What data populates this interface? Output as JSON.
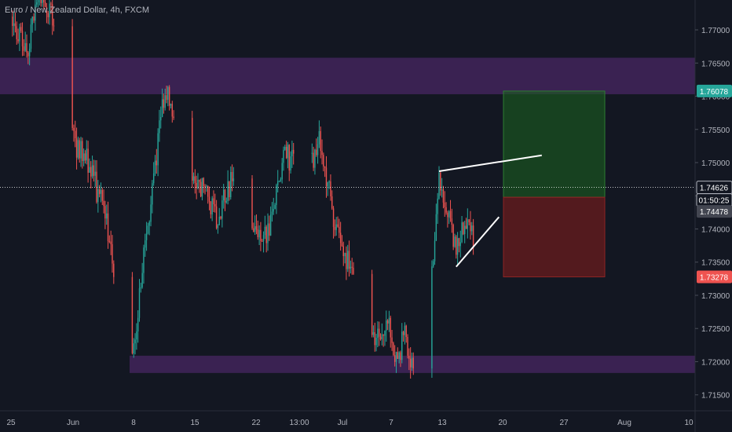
{
  "header": {
    "title": "Euro / New Zealand Dollar, 4h, FXCM"
  },
  "colors": {
    "background": "#131722",
    "up": "#26a69a",
    "down": "#ef5350",
    "zone": "#5b2c7a",
    "target_zone": "#1b5e20",
    "stop_zone": "#7f1d1d",
    "axis_text": "#b2b5be",
    "trendline": "#ffffff",
    "current_price_line": "#ffffff"
  },
  "chart_data": {
    "type": "candlestick",
    "title": "Euro / New Zealand Dollar, 4h, FXCM",
    "ylim": [
      1.7126,
      1.7745
    ],
    "x_ticks": [
      "25",
      "Jun",
      "8",
      "15",
      "22",
      "13:00",
      "Jul",
      "7",
      "13",
      "20",
      "27",
      "Aug",
      "10"
    ],
    "y_ticks": [
      "1.77000",
      "1.76500",
      "1.76000",
      "1.75500",
      "1.75000",
      "1.74500",
      "1.74000",
      "1.73500",
      "1.73000",
      "1.72500",
      "1.72000",
      "1.71500"
    ],
    "price_tags": {
      "target": "1.76078",
      "current": "1.74626",
      "countdown": "01:50:25",
      "entry": "1.74478",
      "stop": "1.73278"
    },
    "price_levels": {
      "target": 1.76078,
      "current": 1.74626,
      "entry": 1.74478,
      "stop": 1.73278
    },
    "zones": [
      {
        "name": "resistance",
        "low": 1.7603,
        "high": 1.7658
      },
      {
        "name": "support",
        "low": 1.7183,
        "high": 1.7209
      }
    ],
    "trendlines": [
      {
        "name": "upper",
        "from": [
          "Jul 14",
          1.7487
        ],
        "to": [
          "Jul 26",
          1.7511
        ]
      },
      {
        "name": "lower",
        "from": [
          "Jul 16",
          1.7343
        ],
        "to": [
          "Jul 21",
          1.7418
        ]
      }
    ],
    "anchors": [
      {
        "date": "May 24",
        "close": 1.772
      },
      {
        "date": "May 26",
        "close": 1.77
      },
      {
        "date": "May 27",
        "close": 1.766
      },
      {
        "date": "May 28",
        "close": 1.775
      },
      {
        "date": "May 30",
        "close": 1.772
      },
      {
        "date": "Jun 1",
        "close": 1.754
      },
      {
        "date": "Jun 3",
        "close": 1.75
      },
      {
        "date": "Jun 5",
        "close": 1.742
      },
      {
        "date": "Jun 7",
        "close": 1.727
      },
      {
        "date": "Jun 8",
        "close": 1.719
      },
      {
        "date": "Jun 10",
        "close": 1.741
      },
      {
        "date": "Jun 12",
        "close": 1.762
      },
      {
        "date": "Jun 14",
        "close": 1.75
      },
      {
        "date": "Jun 16",
        "close": 1.747
      },
      {
        "date": "Jun 18",
        "close": 1.742
      },
      {
        "date": "Jun 20",
        "close": 1.748
      },
      {
        "date": "Jun 22",
        "close": 1.74
      },
      {
        "date": "Jun 24",
        "close": 1.739
      },
      {
        "date": "Jun 26",
        "close": 1.752
      },
      {
        "date": "Jun 28",
        "close": 1.747
      },
      {
        "date": "Jun 30",
        "close": 1.753
      },
      {
        "date": "Jul 2",
        "close": 1.74
      },
      {
        "date": "Jul 4",
        "close": 1.733
      },
      {
        "date": "Jul 6",
        "close": 1.722
      },
      {
        "date": "Jul 8",
        "close": 1.726
      },
      {
        "date": "Jul 9",
        "close": 1.72
      },
      {
        "date": "Jul 10",
        "close": 1.724
      },
      {
        "date": "Jul 11",
        "close": 1.718
      },
      {
        "date": "Jul 12",
        "close": 1.722
      },
      {
        "date": "Jul 13",
        "close": 1.73
      },
      {
        "date": "Jul 14",
        "close": 1.747
      },
      {
        "date": "Jul 15",
        "close": 1.742
      },
      {
        "date": "Jul 16",
        "close": 1.736
      },
      {
        "date": "Jul 17",
        "close": 1.742
      },
      {
        "date": "Jul 18",
        "close": 1.739
      },
      {
        "date": "Jul 19",
        "close": 1.748
      },
      {
        "date": "Jul 20",
        "close": 1.7463
      }
    ]
  }
}
